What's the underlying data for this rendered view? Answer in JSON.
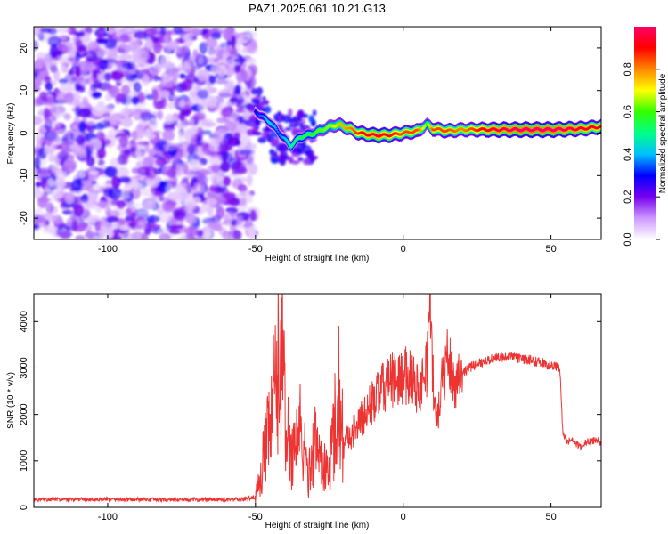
{
  "chart_data": [
    {
      "type": "heatmap",
      "title": "PAZ1.2025.061.10.21.G13",
      "xlabel": "Height of straight line (km)",
      "ylabel": "Frequency (Hz)",
      "xlim": [
        -125,
        67
      ],
      "ylim": [
        -25,
        25
      ],
      "xticks": [
        -100,
        -50,
        0,
        50
      ],
      "yticks": [
        -20,
        -10,
        0,
        10,
        20
      ],
      "colorbar": {
        "label": "Normalized spectral amplitude",
        "range": [
          0,
          1
        ],
        "ticks": [
          0.0,
          0.2,
          0.4,
          0.6,
          0.8
        ],
        "colors": [
          "#ffffff",
          "#cc99ff",
          "#7700ee",
          "#0000ff",
          "#00c0ff",
          "#00ff88",
          "#33ff00",
          "#ffff00",
          "#ff8800",
          "#ff0000",
          "#ff0066"
        ]
      },
      "noise_region": [
        -125,
        -50
      ],
      "signal_ridge": {
        "x": [
          -50,
          -45,
          -42,
          -38,
          -35,
          -30,
          -25,
          -22,
          -18,
          -15,
          -10,
          -5,
          0,
          5,
          8,
          10,
          15,
          20,
          30,
          40,
          50,
          60,
          67
        ],
        "frequency": [
          5,
          2.5,
          0,
          -3,
          -1,
          0,
          1.5,
          2,
          1,
          0,
          -0.5,
          -0.5,
          0,
          0.5,
          2,
          1,
          0.5,
          0.8,
          0.8,
          0.8,
          0.8,
          1,
          1.5
        ],
        "amplitude": [
          0.3,
          0.45,
          0.35,
          0.5,
          0.55,
          0.6,
          0.65,
          0.75,
          0.8,
          0.88,
          0.95,
          0.9,
          0.85,
          0.85,
          0.6,
          0.85,
          0.85,
          0.8,
          0.95,
          1.0,
          1.0,
          0.95,
          0.9
        ]
      }
    },
    {
      "type": "line",
      "title": "",
      "xlabel": "Height of straight line (km)",
      "ylabel": "SNR (10 * v/v)",
      "xlim": [
        -125,
        67
      ],
      "ylim": [
        0,
        4600
      ],
      "xticks": [
        -100,
        -50,
        0,
        50
      ],
      "yticks": [
        0,
        1000,
        2000,
        3000,
        4000
      ],
      "color": "#ee3333",
      "series": [
        {
          "x": [
            -125,
            -100,
            -75,
            -55,
            -50,
            -48,
            -45,
            -43,
            -41,
            -40,
            -38,
            -35,
            -32,
            -30,
            -27,
            -25,
            -22,
            -20,
            -15,
            -10,
            -5,
            0,
            3,
            5,
            8,
            9,
            10,
            11,
            13,
            15,
            17,
            20,
            25,
            30,
            35,
            40,
            45,
            50,
            53,
            54,
            55,
            58,
            60,
            62,
            65,
            67
          ],
          "y": [
            150,
            150,
            150,
            150,
            200,
            900,
            1800,
            2900,
            3700,
            2000,
            1200,
            1800,
            700,
            1500,
            900,
            800,
            2700,
            1400,
            1800,
            2300,
            2700,
            2800,
            2900,
            2500,
            3000,
            4500,
            2800,
            1800,
            2600,
            3300,
            2700,
            2900,
            3100,
            3200,
            3250,
            3200,
            3150,
            3050,
            3000,
            1600,
            1450,
            1400,
            1300,
            1400,
            1450,
            1400
          ]
        }
      ]
    }
  ]
}
